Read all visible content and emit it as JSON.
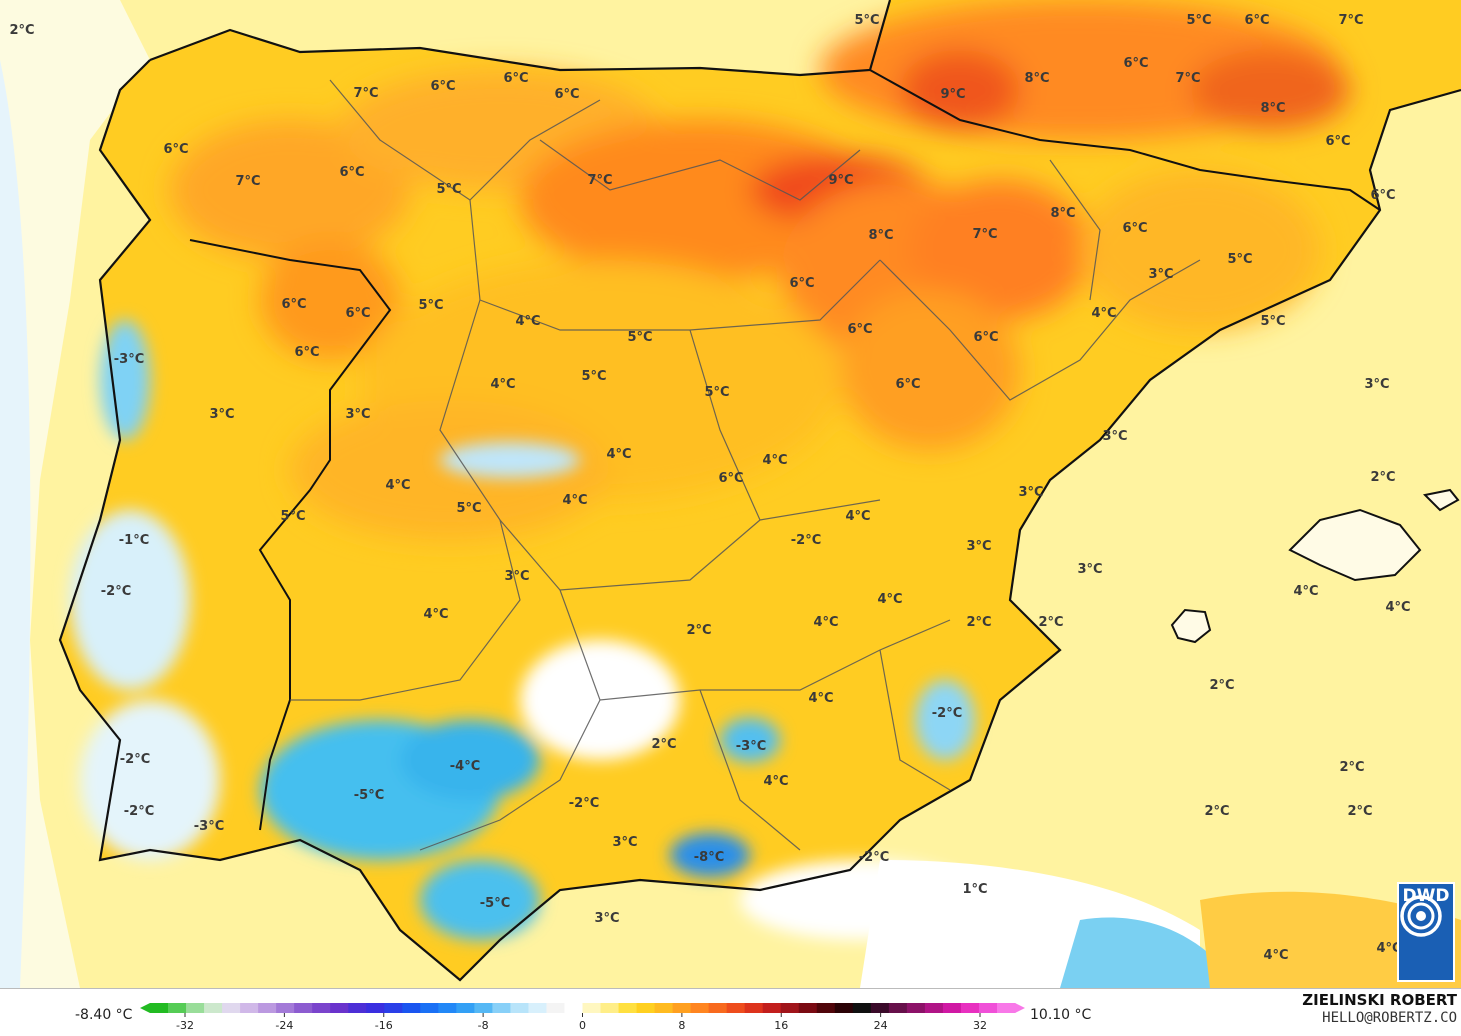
{
  "map": {
    "labels": [
      {
        "text": "2°C"
      },
      {
        "text": "5°C"
      },
      {
        "text": "5°C"
      },
      {
        "text": "6°C"
      },
      {
        "text": "7°C"
      },
      {
        "text": "7°C"
      },
      {
        "text": "6°C"
      },
      {
        "text": "6°C"
      },
      {
        "text": "6°C"
      },
      {
        "text": "8°C"
      },
      {
        "text": "9°C"
      },
      {
        "text": "6°C"
      },
      {
        "text": "7°C"
      },
      {
        "text": "8°C"
      },
      {
        "text": "6°C"
      },
      {
        "text": "6°C"
      },
      {
        "text": "7°C"
      },
      {
        "text": "6°C"
      },
      {
        "text": "5°C"
      },
      {
        "text": "7°C"
      },
      {
        "text": "9°C"
      },
      {
        "text": "8°C"
      },
      {
        "text": "7°C"
      },
      {
        "text": "8°C"
      },
      {
        "text": "6°C"
      },
      {
        "text": "6°C"
      },
      {
        "text": "6°C"
      },
      {
        "text": "3°C"
      },
      {
        "text": "5°C"
      },
      {
        "text": "6°C"
      },
      {
        "text": "6°C"
      },
      {
        "text": "5°C"
      },
      {
        "text": "4°C"
      },
      {
        "text": "6°C"
      },
      {
        "text": "4°C"
      },
      {
        "text": "5°C"
      },
      {
        "text": "6°C"
      },
      {
        "text": "6°C"
      },
      {
        "text": "-3°C"
      },
      {
        "text": "5°C"
      },
      {
        "text": "5°C"
      },
      {
        "text": "6°C"
      },
      {
        "text": "3°C"
      },
      {
        "text": "4°C"
      },
      {
        "text": "5°C"
      },
      {
        "text": "3°C"
      },
      {
        "text": "3°C"
      },
      {
        "text": "3°C"
      },
      {
        "text": "4°C"
      },
      {
        "text": "4°C"
      },
      {
        "text": "2°C"
      },
      {
        "text": "6°C"
      },
      {
        "text": "3°C"
      },
      {
        "text": "4°C"
      },
      {
        "text": "5°C"
      },
      {
        "text": "4°C"
      },
      {
        "text": "5°C"
      },
      {
        "text": "3°C"
      },
      {
        "text": "-1°C"
      },
      {
        "text": "4°C"
      },
      {
        "text": "3°C"
      },
      {
        "text": "-2°C"
      },
      {
        "text": "-2°C"
      },
      {
        "text": "4°C"
      },
      {
        "text": "4°C"
      },
      {
        "text": "4°C"
      },
      {
        "text": "4°C"
      },
      {
        "text": "3°C"
      },
      {
        "text": "2°C"
      },
      {
        "text": "2°C"
      },
      {
        "text": "2°C"
      },
      {
        "text": "2°C"
      },
      {
        "text": "4°C"
      },
      {
        "text": "-2°C"
      },
      {
        "text": "2°C"
      },
      {
        "text": "4°C"
      },
      {
        "text": "-3°C"
      },
      {
        "text": "-4°C"
      },
      {
        "text": "-2°C"
      },
      {
        "text": "4°C"
      },
      {
        "text": "2°C"
      },
      {
        "text": "-5°C"
      },
      {
        "text": "-2°C"
      },
      {
        "text": "-2°C"
      },
      {
        "text": "-3°C"
      },
      {
        "text": "2°C"
      },
      {
        "text": "2°C"
      },
      {
        "text": "3°C"
      },
      {
        "text": "-8°C"
      },
      {
        "text": "-2°C"
      },
      {
        "text": "1°C"
      },
      {
        "text": "-5°C"
      },
      {
        "text": "3°C"
      },
      {
        "text": "4°C"
      },
      {
        "text": "4°C"
      }
    ],
    "logo_text": "DWD"
  },
  "legend": {
    "min_label": "-8.40 °C",
    "max_label": "10.10 °C",
    "ticks": [
      "-32",
      "-24",
      "-16",
      "-8",
      "0",
      "8",
      "16",
      "24",
      "32"
    ],
    "colors": [
      "#22bb22",
      "#55cc55",
      "#99dd99",
      "#cce8cc",
      "#e0d8ee",
      "#d0b8e8",
      "#bb99e0",
      "#a37ad8",
      "#8c5cd0",
      "#7a44cc",
      "#6a33cc",
      "#4d2fd6",
      "#3a2fe0",
      "#2a3fe8",
      "#1a55f0",
      "#1a70f5",
      "#2288f7",
      "#33a0f5",
      "#55b8f5",
      "#88d0f8",
      "#b8e4fa",
      "#d8f0fc",
      "#f4f4f4",
      "#ffffff",
      "#fff7c0",
      "#ffee88",
      "#ffe040",
      "#ffd020",
      "#ffbb20",
      "#ffa020",
      "#ff8520",
      "#f86a1e",
      "#ee4d1d",
      "#dd331c",
      "#c21e1c",
      "#a0141a",
      "#7a0a12",
      "#50050a",
      "#2a0206",
      "#101010",
      "#3a0a2a",
      "#66104a",
      "#8c1268",
      "#b01486",
      "#d018a4",
      "#e830c0",
      "#f050d8",
      "#f878e8"
    ]
  },
  "author": {
    "name": "ZIELINSKI ROBERT",
    "email": "HELLO@ROBERTZ.CO"
  }
}
